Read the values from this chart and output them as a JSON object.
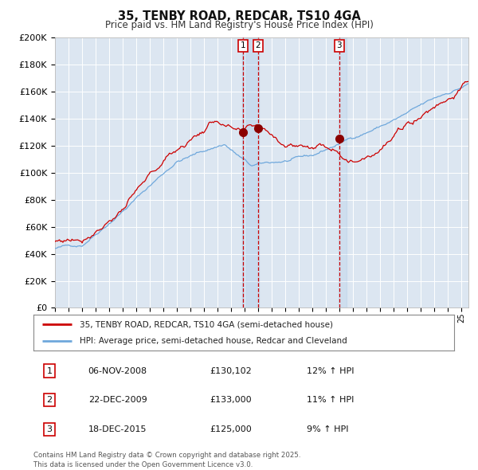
{
  "title": "35, TENBY ROAD, REDCAR, TS10 4GA",
  "subtitle": "Price paid vs. HM Land Registry's House Price Index (HPI)",
  "legend_line1": "35, TENBY ROAD, REDCAR, TS10 4GA (semi-detached house)",
  "legend_line2": "HPI: Average price, semi-detached house, Redcar and Cleveland",
  "transaction1_date": "06-NOV-2008",
  "transaction1_price": "£130,102",
  "transaction1_hpi": "12% ↑ HPI",
  "transaction2_date": "22-DEC-2009",
  "transaction2_price": "£133,000",
  "transaction2_hpi": "11% ↑ HPI",
  "transaction3_date": "18-DEC-2015",
  "transaction3_price": "£125,000",
  "transaction3_hpi": "9% ↑ HPI",
  "footer": "Contains HM Land Registry data © Crown copyright and database right 2025.\nThis data is licensed under the Open Government Licence v3.0.",
  "hpi_color": "#6fa8dc",
  "price_color": "#cc0000",
  "marker_color": "#8b0000",
  "vline_color": "#cc0000",
  "bg_color": "#dce6f1",
  "grid_color": "#ffffff",
  "ylim_min": 0,
  "ylim_max": 200000,
  "year_start": 1995,
  "year_end": 2025,
  "transaction1_year": 2008.85,
  "transaction2_year": 2009.97,
  "transaction3_year": 2015.96,
  "t1_val": 130102,
  "t2_val": 133000,
  "t3_val": 125000
}
